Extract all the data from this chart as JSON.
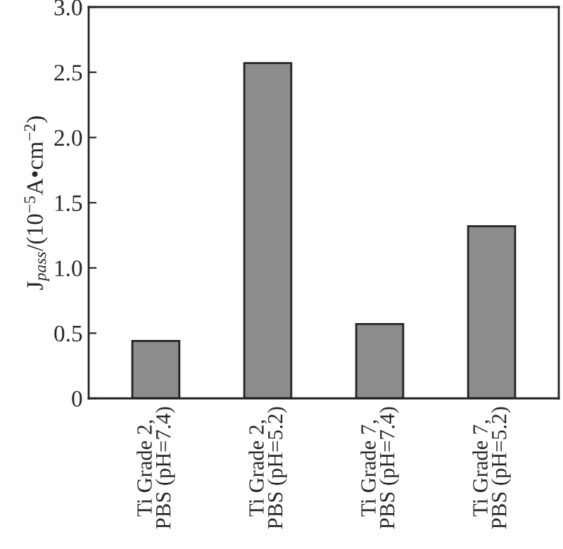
{
  "chart_data": {
    "type": "bar",
    "ylabel": "J$_{pass}$/(10$^{−5}$A•cm$^{−2}$)",
    "categories": [
      "Ti Grade 2,\nPBS (pH=7.4)",
      "Ti Grade 2,\nPBS (pH=5.2)",
      "Ti Grade 7,\nPBS (pH=7.4)",
      "Ti Grade 7,\nPBS (pH=5.2)"
    ],
    "values": [
      0.44,
      2.57,
      0.57,
      1.32
    ],
    "color": "#8c8c8c",
    "ylim": [
      0,
      3.0
    ],
    "yticks": [
      0,
      {
        "value": 0.5,
        "label": "0.5"
      },
      {
        "value": 1.0,
        "label": "1.0"
      },
      {
        "value": 1.5,
        "label": "1.5"
      },
      {
        "value": 2.0,
        "label": "2.0"
      },
      {
        "value": 2.5,
        "label": "2.5"
      },
      {
        "value": 3.0,
        "label": "3.0"
      }
    ],
    "grid": false,
    "legend": false
  }
}
